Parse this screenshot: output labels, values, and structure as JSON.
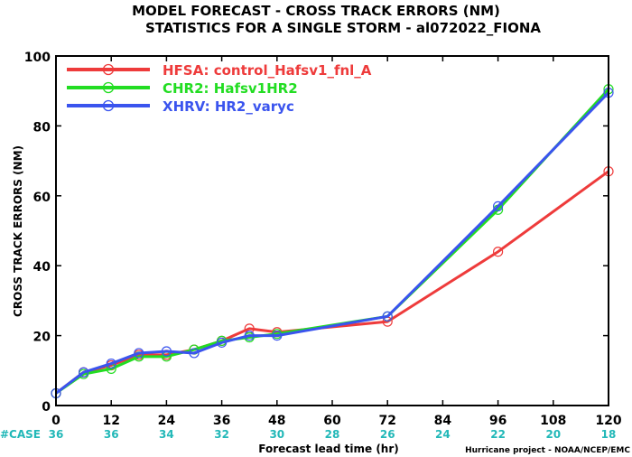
{
  "chart_data": {
    "type": "line",
    "title_line1": "MODEL FORECAST - CROSS TRACK ERRORS (NM)",
    "title_line2": "STATISTICS FOR A SINGLE STORM - al072022_FIONA",
    "xlabel": "Forecast lead time (hr)",
    "ylabel": "CROSS TRACK ERRORS (NM)",
    "xlim": [
      0,
      120
    ],
    "ylim": [
      0,
      100
    ],
    "x_ticks": [
      0,
      12,
      24,
      36,
      48,
      60,
      72,
      84,
      96,
      108,
      120
    ],
    "y_ticks": [
      0,
      20,
      40,
      60,
      80,
      100
    ],
    "x": [
      0,
      6,
      12,
      18,
      24,
      30,
      36,
      42,
      48,
      72,
      96,
      120
    ],
    "series": [
      {
        "name": "HFSA: control_Hafsv1_fnl_A",
        "color": "#ee3b3b",
        "values": [
          3.5,
          9.5,
          11.5,
          14.5,
          14.5,
          16,
          18.5,
          22,
          21,
          24,
          44,
          67
        ]
      },
      {
        "name": "CHR2: Hafsv1HR2",
        "color": "#22dd22",
        "values": [
          3.5,
          9,
          10.5,
          14,
          14,
          16,
          18.5,
          19.5,
          20.5,
          25.5,
          56,
          90.5
        ]
      },
      {
        "name": "XHRV: HR2_varyc",
        "color": "#3a54ee",
        "values": [
          3.5,
          9.5,
          12,
          15,
          15.5,
          15,
          18,
          20,
          20,
          25.5,
          57,
          89.5
        ]
      }
    ],
    "case_label": "#CASE",
    "case_color": "#22b8b8",
    "case_x": [
      0,
      12,
      24,
      36,
      48,
      60,
      72,
      84,
      96,
      108,
      120
    ],
    "case_counts": [
      "36",
      "36",
      "34",
      "32",
      "30",
      "28",
      "26",
      "24",
      "22",
      "20",
      "18"
    ],
    "credit": "Hurricane project - NOAA/NCEP/EMC",
    "legend_position": "top-left",
    "grid": false
  }
}
